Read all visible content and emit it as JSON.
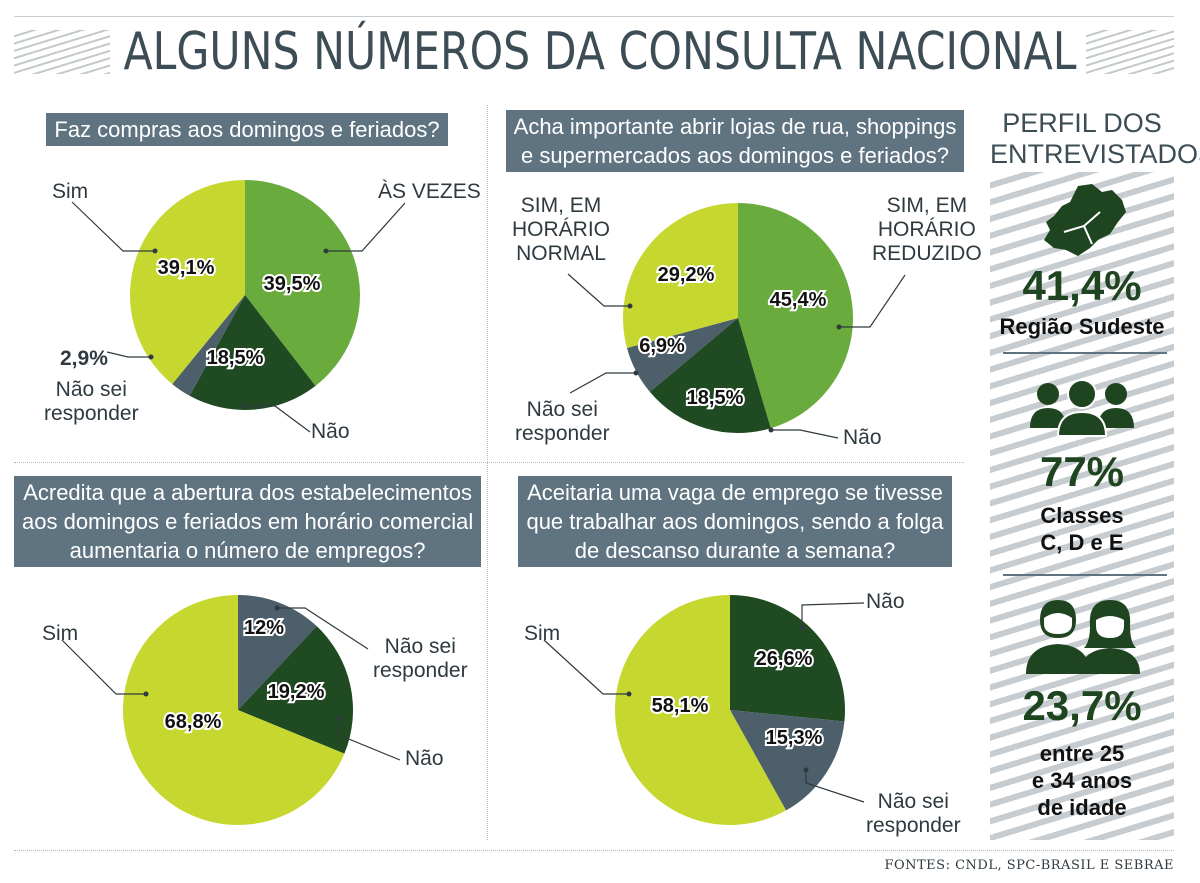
{
  "title": "ALGUNS NÚMEROS DA CONSULTA NACIONAL",
  "source": "FONTES: CNDL, SPC-BRASIL E SEBRAE",
  "colors": {
    "light": "#c6d730",
    "medium": "#6aab3d",
    "dark": "#1f4a22",
    "slate": "#4c5f6b"
  },
  "chart_data": [
    {
      "type": "pie",
      "title": "Faz compras aos domingos e feriados?",
      "slices": [
        {
          "label": "ÀS VEZES",
          "value": 39.5,
          "display": "39,5%",
          "color": "#6aab3d"
        },
        {
          "label": "Não",
          "value": 18.5,
          "display": "18,5%",
          "color": "#1f4a22"
        },
        {
          "label": "Não sei responder",
          "value": 2.9,
          "display": "2,9%",
          "color": "#4c5f6b"
        },
        {
          "label": "Sim",
          "value": 39.1,
          "display": "39,1%",
          "color": "#c6d730"
        }
      ]
    },
    {
      "type": "pie",
      "title": "Acha importante abrir lojas de rua, shoppings e supermercados aos domingos e feriados?",
      "title_lines": [
        "Acha importante abrir lojas de rua, shoppings",
        "e supermercados aos domingos e feriados?"
      ],
      "slices": [
        {
          "label": "SIM, EM HORÁRIO REDUZIDO",
          "value": 45.4,
          "display": "45,4%",
          "color": "#6aab3d"
        },
        {
          "label": "Não",
          "value": 18.5,
          "display": "18,5%",
          "color": "#1f4a22"
        },
        {
          "label": "Não sei responder",
          "value": 6.9,
          "display": "6,9%",
          "color": "#4c5f6b"
        },
        {
          "label": "SIM, EM HORÁRIO NORMAL",
          "value": 29.2,
          "display": "29,2%",
          "color": "#c6d730"
        }
      ]
    },
    {
      "type": "pie",
      "title": "Acredita que a abertura dos estabelecimentos aos domingos e feriados em horário comercial aumentaria o número de empregos?",
      "title_lines": [
        "Acredita que a abertura dos estabelecimentos",
        "aos domingos e feriados em horário comercial",
        "aumentaria o número de empregos?"
      ],
      "slices": [
        {
          "label": "Não sei responder",
          "value": 12,
          "display": "12%",
          "color": "#4c5f6b"
        },
        {
          "label": "Não",
          "value": 19.2,
          "display": "19,2%",
          "color": "#1f4a22"
        },
        {
          "label": "Sim",
          "value": 68.8,
          "display": "68,8%",
          "color": "#c6d730"
        }
      ]
    },
    {
      "type": "pie",
      "title": "Aceitaria uma vaga de emprego se tivesse que trabalhar aos domingos, sendo a folga de descanso durante a semana?",
      "title_lines": [
        "Aceitaria uma vaga de emprego se tivesse",
        "que trabalhar aos domingos, sendo a folga",
        "de descanso durante a semana?"
      ],
      "slices": [
        {
          "label": "Não",
          "value": 26.6,
          "display": "26,6%",
          "color": "#1f4a22"
        },
        {
          "label": "Não sei responder",
          "value": 15.3,
          "display": "15,3%",
          "color": "#4c5f6b"
        },
        {
          "label": "Sim",
          "value": 58.1,
          "display": "58,1%",
          "color": "#c6d730"
        }
      ]
    }
  ],
  "labels": {
    "p1_sim": "Sim",
    "p1_asvezes": "ÀS VEZES",
    "p1_naosei_pct": "2,9%",
    "p1_naosei_1": "Não sei",
    "p1_naosei_2": "responder",
    "p1_nao": "Não",
    "p2_normal_1": "SIM, EM",
    "p2_normal_2": "HORÁRIO",
    "p2_normal_3": "NORMAL",
    "p2_reduzido_1": "SIM, EM",
    "p2_reduzido_2": "HORÁRIO",
    "p2_reduzido_3": "REDUZIDO",
    "p2_naosei_1": "Não sei",
    "p2_naosei_2": "responder",
    "p2_nao": "Não",
    "p3_sim": "Sim",
    "p3_naosei_1": "Não sei",
    "p3_naosei_2": "responder",
    "p3_nao": "Não",
    "p4_sim": "Sim",
    "p4_nao": "Não",
    "p4_naosei_1": "Não sei",
    "p4_naosei_2": "responder"
  },
  "profile": {
    "title_1": "PERFIL DOS",
    "title_2": "ENTREVISTADOS",
    "items": [
      {
        "icon": "brazil-southeast-map-icon",
        "value": "41,4%",
        "label_1": "Região Sudeste"
      },
      {
        "icon": "people-group-icon",
        "value": "77%",
        "label_1": "Classes",
        "label_2": "C, D e E"
      },
      {
        "icon": "man-woman-icon",
        "value": "23,7%",
        "label_1": "entre 25",
        "label_2": "e 34 anos",
        "label_3": "de idade"
      }
    ]
  }
}
